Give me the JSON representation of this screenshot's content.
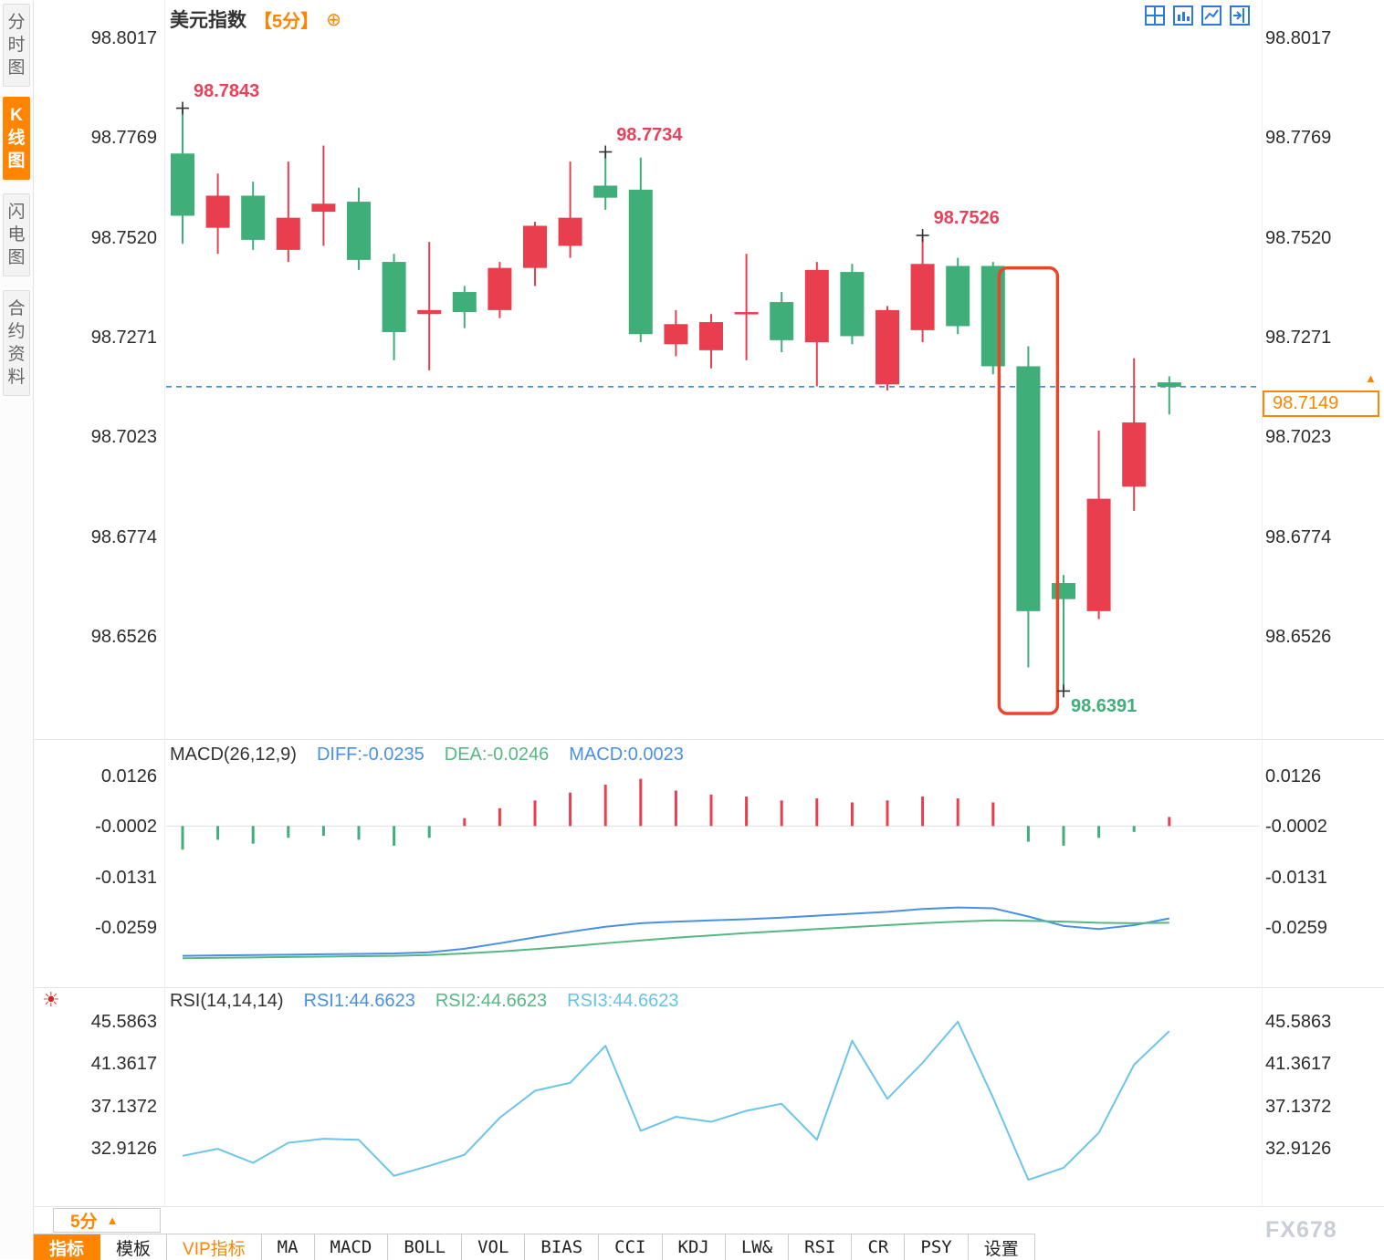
{
  "colors": {
    "up": "#e83e4d",
    "down": "#3fae78",
    "accent_orange": "#ff8400",
    "dashed_blue": "#2f7dd9",
    "diff_line": "#4a90e2",
    "dea_line": "#56b783",
    "rsi_line": "#6cc5e9",
    "annotation_red": "#e8415a",
    "annotation_green": "#3fae78",
    "highlight_box": "#e8472b"
  },
  "icons": {
    "add": "⊕",
    "up_arrow": "▲",
    "sun": "☀",
    "header_icons": [
      "layout-grid-icon",
      "bar-chart-window-icon",
      "line-chart-window-icon",
      "next-chart-icon"
    ]
  },
  "sidebar": {
    "tabs": [
      {
        "label": "分时图",
        "active": false
      },
      {
        "label": "K线图",
        "active": true
      },
      {
        "label": "闪电图",
        "active": false
      },
      {
        "label": "合约资料",
        "active": false
      }
    ]
  },
  "chart_header": {
    "title": "美元指数",
    "period_tag": "【5分】"
  },
  "macd_legend": {
    "title": "MACD(26,12,9)",
    "diff": "DIFF:-0.0235",
    "dea": "DEA:-0.0246",
    "macd": "MACD:0.0023"
  },
  "rsi_legend": {
    "title": "RSI(14,14,14)",
    "rsi1": "RSI1:44.6623",
    "rsi2": "RSI2:44.6623",
    "rsi3": "RSI3:44.6623"
  },
  "price_tag": {
    "value": "98.7149"
  },
  "bottom": {
    "period_label": "5分",
    "toolbar": [
      {
        "label": "指标",
        "name": "indicators",
        "style": "active"
      },
      {
        "label": "模板",
        "name": "templates",
        "style": ""
      },
      {
        "label": "VIP指标",
        "name": "vip-indicators",
        "style": "vip"
      },
      {
        "label": "MA",
        "name": "ma",
        "style": ""
      },
      {
        "label": "MACD",
        "name": "macd",
        "style": ""
      },
      {
        "label": "BOLL",
        "name": "boll",
        "style": ""
      },
      {
        "label": "VOL",
        "name": "vol",
        "style": ""
      },
      {
        "label": "BIAS",
        "name": "bias",
        "style": ""
      },
      {
        "label": "CCI",
        "name": "cci",
        "style": ""
      },
      {
        "label": "KDJ",
        "name": "kdj",
        "style": ""
      },
      {
        "label": "LW&",
        "name": "lw",
        "style": ""
      },
      {
        "label": "RSI",
        "name": "rsi",
        "style": ""
      },
      {
        "label": "CR",
        "name": "cr",
        "style": ""
      },
      {
        "label": "PSY",
        "name": "psy",
        "style": ""
      },
      {
        "label": "设置",
        "name": "settings",
        "style": ""
      }
    ]
  },
  "watermark": "FX678",
  "chart_data": [
    {
      "type": "candlestick",
      "title": "美元指数 5分",
      "y_ticks": [
        98.8017,
        98.7769,
        98.752,
        98.7271,
        98.7023,
        98.6774,
        98.6526
      ],
      "current_price": 98.7149,
      "candles": [
        [
          98.773,
          98.7843,
          98.7505,
          98.7575
        ],
        [
          98.7545,
          98.768,
          98.748,
          98.7625
        ],
        [
          98.7625,
          98.766,
          98.749,
          98.7515
        ],
        [
          98.749,
          98.771,
          98.746,
          98.757
        ],
        [
          98.7585,
          98.775,
          98.75,
          98.7605
        ],
        [
          98.761,
          98.7645,
          98.744,
          98.7465
        ],
        [
          98.746,
          98.748,
          98.7215,
          98.7285
        ],
        [
          98.733,
          98.751,
          98.719,
          98.734
        ],
        [
          98.7385,
          98.74,
          98.7295,
          98.7335
        ],
        [
          98.734,
          98.746,
          98.732,
          98.7445
        ],
        [
          98.7445,
          98.756,
          98.74,
          98.755
        ],
        [
          98.75,
          98.771,
          98.747,
          98.757
        ],
        [
          98.765,
          98.7734,
          98.759,
          98.762
        ],
        [
          98.764,
          98.772,
          98.726,
          98.728
        ],
        [
          98.7255,
          98.734,
          98.7225,
          98.7305
        ],
        [
          98.724,
          98.733,
          98.7195,
          98.731
        ],
        [
          98.733,
          98.748,
          98.7215,
          98.7335
        ],
        [
          98.736,
          98.7385,
          98.7235,
          98.7265
        ],
        [
          98.726,
          98.746,
          98.715,
          98.744
        ],
        [
          98.7435,
          98.7455,
          98.7255,
          98.7275
        ],
        [
          98.7155,
          98.735,
          98.714,
          98.734
        ],
        [
          98.729,
          98.7526,
          98.726,
          98.7455
        ],
        [
          98.745,
          98.747,
          98.728,
          98.73
        ],
        [
          98.745,
          98.746,
          98.718,
          98.72
        ],
        [
          98.72,
          98.725,
          98.645,
          98.659
        ],
        [
          98.666,
          98.668,
          98.6391,
          98.662
        ],
        [
          98.659,
          98.704,
          98.657,
          98.687
        ],
        [
          98.69,
          98.722,
          98.684,
          98.706
        ],
        [
          98.716,
          98.7175,
          98.708,
          98.7149
        ]
      ],
      "marked_points": [
        {
          "index": 0,
          "value": 98.7843,
          "label": "98.7843",
          "side": "high"
        },
        {
          "index": 12,
          "value": 98.7734,
          "label": "98.7734",
          "side": "high"
        },
        {
          "index": 21,
          "value": 98.7526,
          "label": "98.7526",
          "side": "high"
        },
        {
          "index": 25,
          "value": 98.6391,
          "label": "98.6391",
          "side": "low"
        }
      ],
      "highlight_box": {
        "candle_index": 24,
        "price_top": 98.7445,
        "price_bottom": 98.6335
      }
    },
    {
      "type": "bar",
      "name": "MACD(26,12,9)",
      "y_ticks": [
        0.0126,
        -0.0002,
        -0.0131,
        -0.0259
      ],
      "hist": [
        -0.006,
        -0.0035,
        -0.0045,
        -0.003,
        -0.0025,
        -0.0035,
        -0.005,
        -0.003,
        0.002,
        0.0045,
        0.0065,
        0.0085,
        0.0105,
        0.012,
        0.009,
        0.008,
        0.0075,
        0.0065,
        0.007,
        0.006,
        0.0065,
        0.0075,
        0.007,
        0.006,
        -0.004,
        -0.005,
        -0.003,
        -0.0015,
        0.0023
      ],
      "diff": [
        -0.033,
        -0.0329,
        -0.0328,
        -0.0327,
        -0.0326,
        -0.0325,
        -0.0324,
        -0.0321,
        -0.0312,
        -0.0298,
        -0.0283,
        -0.0269,
        -0.0256,
        -0.0247,
        -0.0243,
        -0.024,
        -0.0237,
        -0.0233,
        -0.0228,
        -0.0223,
        -0.0218,
        -0.0211,
        -0.0207,
        -0.0209,
        -0.023,
        -0.0254,
        -0.0262,
        -0.0252,
        -0.0235
      ],
      "dea": [
        -0.0336,
        -0.0335,
        -0.0334,
        -0.0333,
        -0.0332,
        -0.0331,
        -0.033,
        -0.0328,
        -0.0324,
        -0.0319,
        -0.0313,
        -0.0306,
        -0.0298,
        -0.0291,
        -0.0284,
        -0.0278,
        -0.0272,
        -0.0267,
        -0.0262,
        -0.0257,
        -0.0252,
        -0.0247,
        -0.0243,
        -0.024,
        -0.0241,
        -0.0243,
        -0.0246,
        -0.0247,
        -0.0246
      ]
    },
    {
      "type": "line",
      "name": "RSI(14,14,14)",
      "y_ticks": [
        45.5863,
        41.3617,
        37.1372,
        32.9126
      ],
      "values": [
        32.2,
        32.9,
        31.5,
        33.5,
        33.9,
        33.8,
        30.2,
        31.2,
        32.3,
        36.0,
        38.7,
        39.5,
        43.2,
        34.7,
        36.1,
        35.6,
        36.7,
        37.4,
        33.8,
        43.7,
        37.9,
        41.5,
        45.6,
        38.0,
        29.8,
        31.0,
        34.5,
        41.3,
        44.6623
      ]
    }
  ]
}
